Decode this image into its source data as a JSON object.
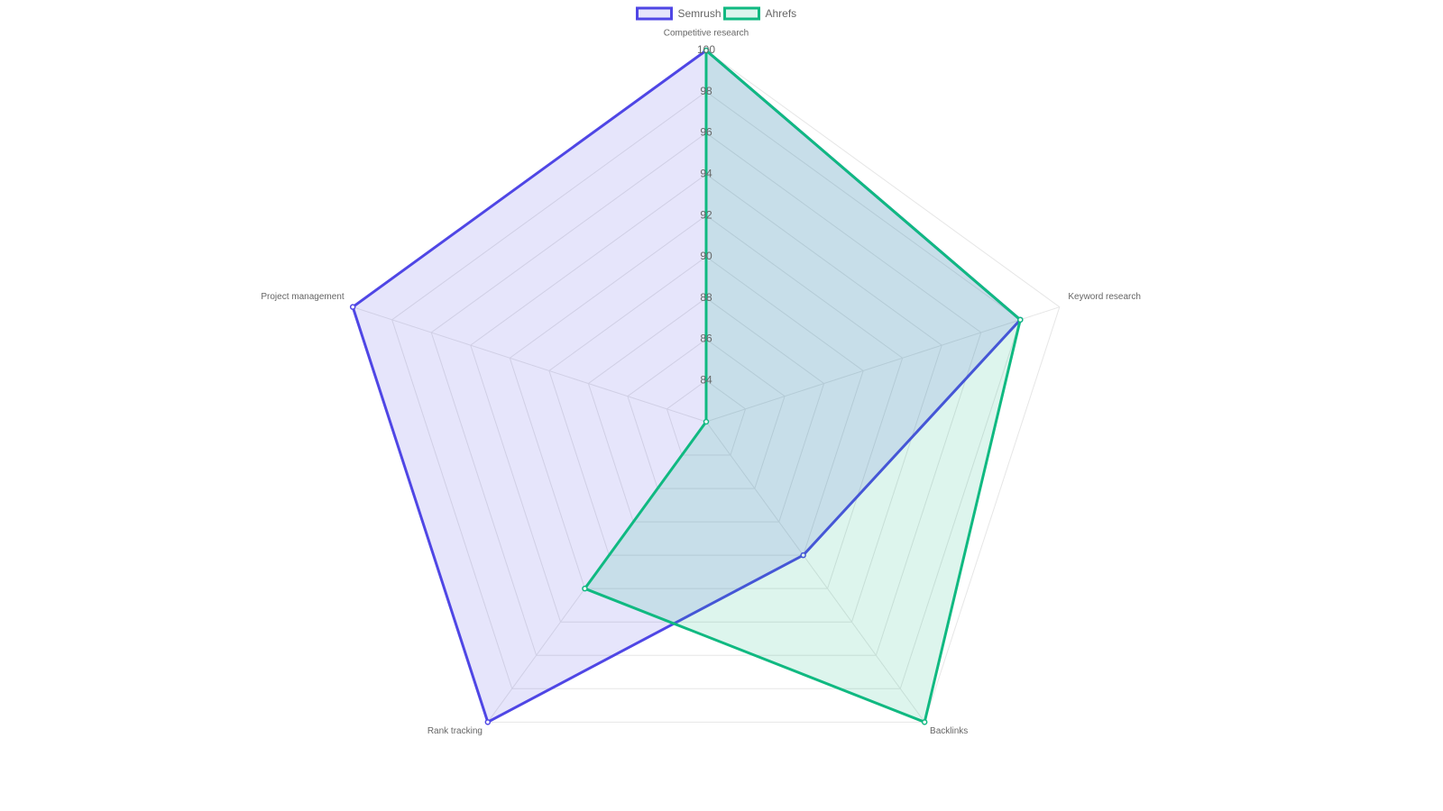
{
  "chart_data": {
    "type": "radar",
    "categories": [
      "Competitive research",
      "Keyword research",
      "Backlinks",
      "Rank tracking",
      "Project management"
    ],
    "series": [
      {
        "name": "Semrush",
        "color": "#4f46e5",
        "values": [
          100,
          98,
          90,
          100,
          100
        ]
      },
      {
        "name": "Ahrefs",
        "color": "#10b981",
        "values": [
          100,
          98,
          100,
          92,
          82
        ]
      }
    ],
    "rlim": [
      82,
      100
    ],
    "rticks": [
      84,
      86,
      88,
      90,
      92,
      94,
      96,
      98,
      100
    ],
    "grid": true,
    "legend": "top"
  }
}
